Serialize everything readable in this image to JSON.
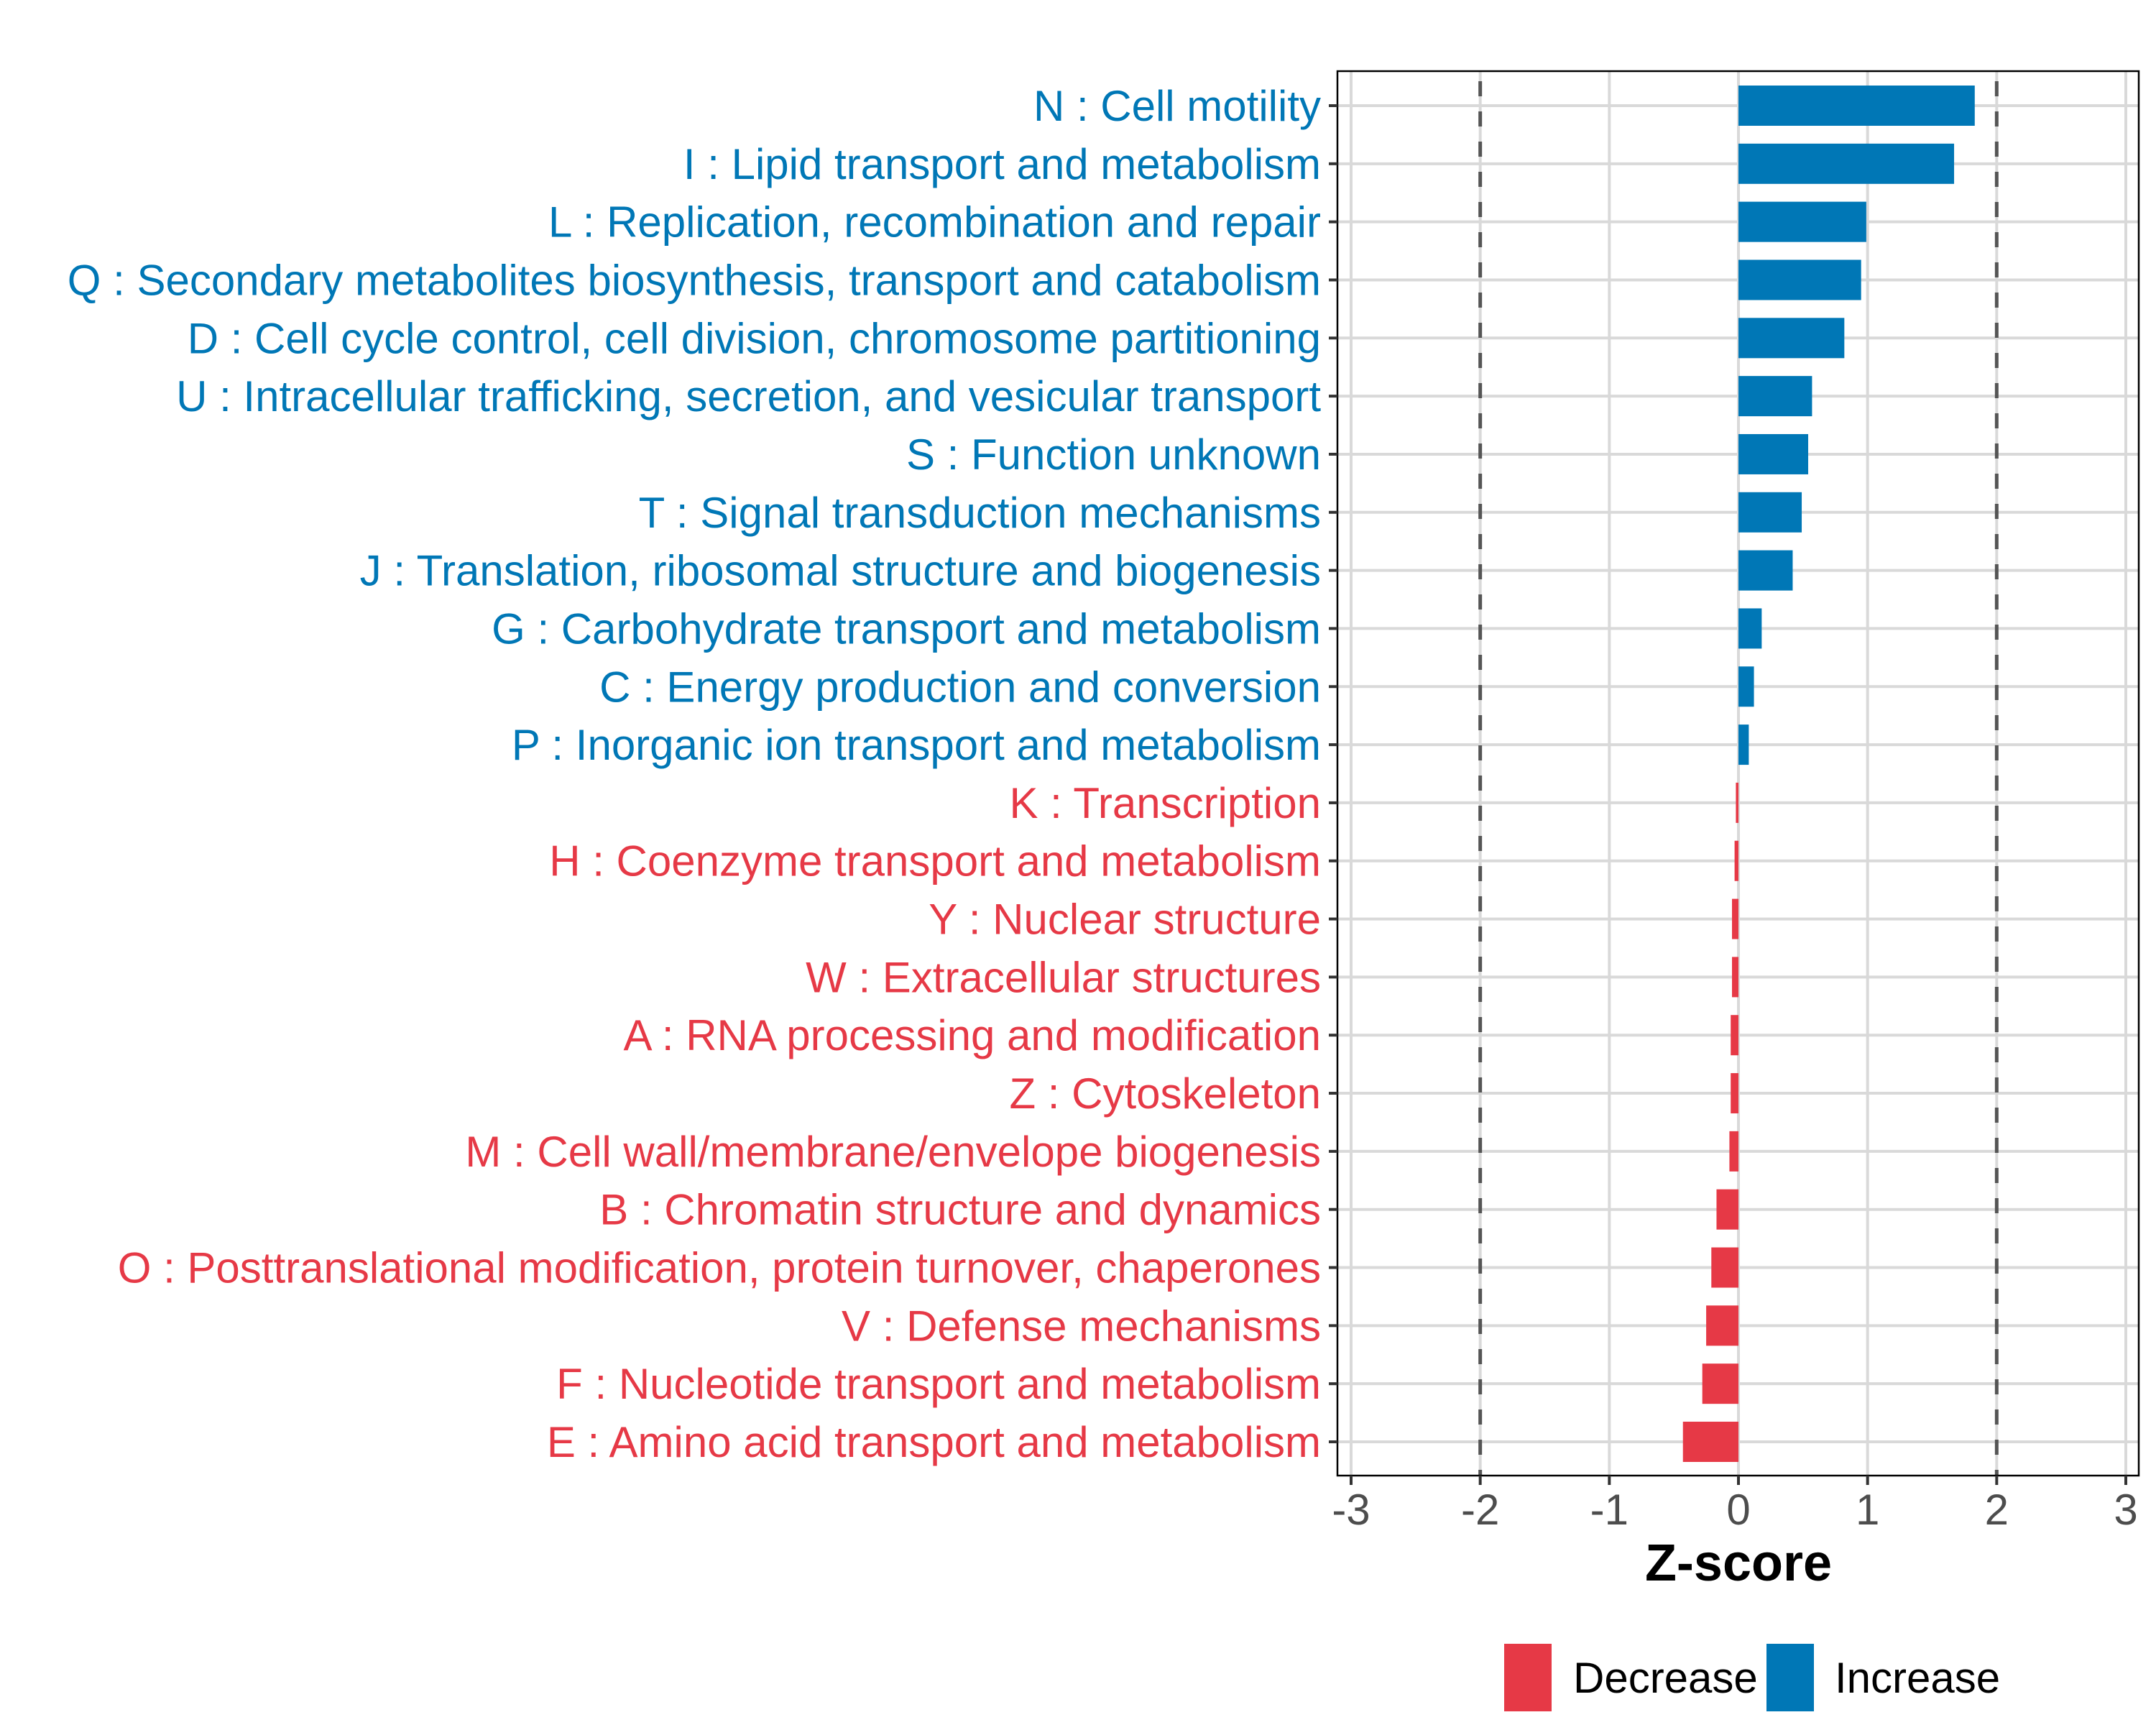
{
  "chart_data": {
    "type": "bar",
    "orientation": "horizontal",
    "title": "",
    "xlabel": "Z-score",
    "ylabel": "",
    "xlim": [
      -3.1,
      3.1
    ],
    "x_ticks": [
      -3,
      -2,
      -1,
      0,
      1,
      2,
      3
    ],
    "x_tick_labels": [
      "-3",
      "-2",
      "-1",
      "0",
      "1",
      "2",
      "3"
    ],
    "reference_lines": [
      -2,
      2
    ],
    "grid": true,
    "legend": {
      "placement": "bottom",
      "entries": [
        {
          "name": "Decrease",
          "color": "#E63946"
        },
        {
          "name": "Increase",
          "color": "#0077B6"
        }
      ]
    },
    "categories": [
      "N : Cell motility",
      "I : Lipid transport and metabolism",
      "L : Replication, recombination and repair",
      "Q : Secondary metabolites biosynthesis, transport and catabolism",
      "D : Cell cycle control, cell division, chromosome partitioning",
      "U : Intracellular trafficking, secretion, and vesicular transport",
      "S : Function unknown",
      "T : Signal transduction mechanisms",
      "J : Translation, ribosomal structure and biogenesis",
      "G : Carbohydrate transport and metabolism",
      "C : Energy production and conversion",
      "P : Inorganic ion transport and metabolism",
      "K : Transcription",
      "H : Coenzyme transport and metabolism",
      "Y : Nuclear structure",
      "W : Extracellular structures",
      "A : RNA processing and modification",
      "Z : Cytoskeleton",
      "M : Cell wall/membrane/envelope biogenesis",
      "B : Chromatin structure and dynamics",
      "O : Posttranslational modification, protein turnover, chaperones",
      "V : Defense mechanisms",
      "F : Nucleotide transport and metabolism",
      "E : Amino acid transport and metabolism"
    ],
    "values": [
      1.83,
      1.67,
      0.99,
      0.95,
      0.82,
      0.57,
      0.54,
      0.49,
      0.42,
      0.18,
      0.12,
      0.08,
      -0.02,
      -0.03,
      -0.05,
      -0.05,
      -0.06,
      -0.06,
      -0.07,
      -0.17,
      -0.21,
      -0.25,
      -0.28,
      -0.43
    ],
    "groups": [
      "Increase",
      "Increase",
      "Increase",
      "Increase",
      "Increase",
      "Increase",
      "Increase",
      "Increase",
      "Increase",
      "Increase",
      "Increase",
      "Increase",
      "Decrease",
      "Decrease",
      "Decrease",
      "Decrease",
      "Decrease",
      "Decrease",
      "Decrease",
      "Decrease",
      "Decrease",
      "Decrease",
      "Decrease",
      "Decrease"
    ]
  },
  "colors": {
    "Increase": "#0077B6",
    "Decrease": "#E63946",
    "grid": "#D9D9D9",
    "reference_line": "#555555",
    "panel_border": "#000000"
  }
}
